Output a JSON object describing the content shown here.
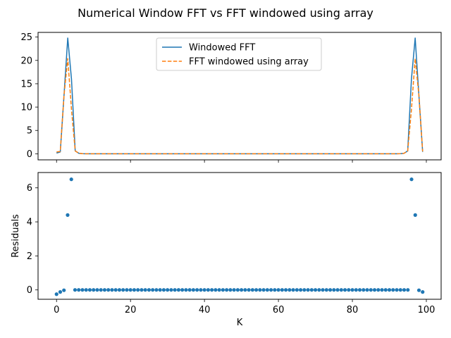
{
  "chart_data": {
    "title": "Numerical Window FFT vs FFT windowed using array",
    "subplots": [
      {
        "type": "line",
        "x_range": [
          0,
          99
        ],
        "xlim": [
          -5,
          104
        ],
        "ylim": [
          -1.3,
          26
        ],
        "yticks": [
          0,
          5,
          10,
          15,
          20,
          25
        ],
        "xticks": [
          0,
          20,
          40,
          60,
          80,
          100
        ],
        "show_x_tick_labels": false,
        "legend_placement": "upper-center",
        "series": [
          {
            "name": "Windowed FFT",
            "color": "#1f77b4",
            "style": "solid",
            "values": [
              0.15,
              0.4,
              12.5,
              24.8,
              16.0,
              0.6,
              0.1,
              0.02,
              0,
              0,
              0,
              0,
              0,
              0,
              0,
              0,
              0,
              0,
              0,
              0,
              0,
              0,
              0,
              0,
              0,
              0,
              0,
              0,
              0,
              0,
              0,
              0,
              0,
              0,
              0,
              0,
              0,
              0,
              0,
              0,
              0,
              0,
              0,
              0,
              0,
              0,
              0,
              0,
              0,
              0,
              0,
              0,
              0,
              0,
              0,
              0,
              0,
              0,
              0,
              0,
              0,
              0,
              0,
              0,
              0,
              0,
              0,
              0,
              0,
              0,
              0,
              0,
              0,
              0,
              0,
              0,
              0,
              0,
              0,
              0,
              0,
              0,
              0,
              0,
              0,
              0,
              0,
              0,
              0,
              0,
              0,
              0,
              0.02,
              0.1,
              0.6,
              16.0,
              24.8,
              12.5,
              0.4
            ]
          },
          {
            "name": "FFT windowed using array",
            "color": "#ff7f0e",
            "style": "dashed",
            "values": [
              0.4,
              0.5,
              12.5,
              20.4,
              9.5,
              0.6,
              0.1,
              0.02,
              0,
              0,
              0,
              0,
              0,
              0,
              0,
              0,
              0,
              0,
              0,
              0,
              0,
              0,
              0,
              0,
              0,
              0,
              0,
              0,
              0,
              0,
              0,
              0,
              0,
              0,
              0,
              0,
              0,
              0,
              0,
              0,
              0,
              0,
              0,
              0,
              0,
              0,
              0,
              0,
              0,
              0,
              0,
              0,
              0,
              0,
              0,
              0,
              0,
              0,
              0,
              0,
              0,
              0,
              0,
              0,
              0,
              0,
              0,
              0,
              0,
              0,
              0,
              0,
              0,
              0,
              0,
              0,
              0,
              0,
              0,
              0,
              0,
              0,
              0,
              0,
              0,
              0,
              0,
              0,
              0,
              0,
              0,
              0,
              0.02,
              0.1,
              0.6,
              9.5,
              20.4,
              12.5,
              0.5
            ]
          }
        ]
      },
      {
        "type": "scatter",
        "x_range": [
          0,
          99
        ],
        "xlim": [
          -5,
          104
        ],
        "ylim": [
          -0.55,
          6.9
        ],
        "yticks": [
          0,
          2,
          4,
          6
        ],
        "xticks": [
          0,
          20,
          40,
          60,
          80,
          100
        ],
        "xlabel": "K",
        "ylabel": "Residuals",
        "series": [
          {
            "color": "#1f77b4",
            "values": [
              -0.25,
              -0.12,
              -0.02,
              4.4,
              6.5,
              0,
              0,
              0,
              0,
              0,
              0,
              0,
              0,
              0,
              0,
              0,
              0,
              0,
              0,
              0,
              0,
              0,
              0,
              0,
              0,
              0,
              0,
              0,
              0,
              0,
              0,
              0,
              0,
              0,
              0,
              0,
              0,
              0,
              0,
              0,
              0,
              0,
              0,
              0,
              0,
              0,
              0,
              0,
              0,
              0,
              0,
              0,
              0,
              0,
              0,
              0,
              0,
              0,
              0,
              0,
              0,
              0,
              0,
              0,
              0,
              0,
              0,
              0,
              0,
              0,
              0,
              0,
              0,
              0,
              0,
              0,
              0,
              0,
              0,
              0,
              0,
              0,
              0,
              0,
              0,
              0,
              0,
              0,
              0,
              0,
              0,
              0,
              0,
              0,
              0,
              0,
              6.5,
              4.4,
              -0.02,
              -0.12
            ]
          }
        ]
      }
    ]
  }
}
